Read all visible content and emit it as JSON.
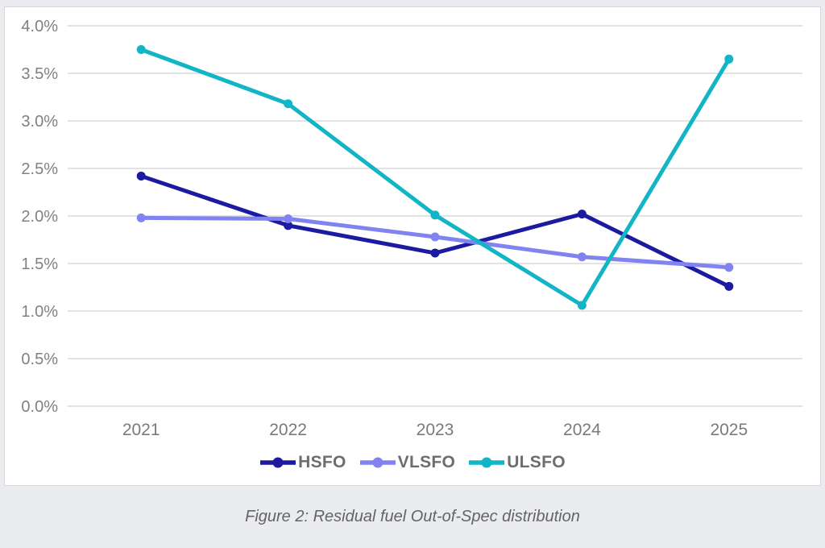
{
  "caption": {
    "text": "Figure 2: Residual fuel Out-of-Spec distribution"
  },
  "chart_data": {
    "type": "line",
    "categories": [
      "2021",
      "2022",
      "2023",
      "2024",
      "2025"
    ],
    "series": [
      {
        "name": "HSFO",
        "color": "#1B1AA0",
        "values": [
          2.42,
          1.9,
          1.61,
          2.02,
          1.26
        ]
      },
      {
        "name": "VLSFO",
        "color": "#8183F0",
        "values": [
          1.98,
          1.97,
          1.78,
          1.57,
          1.46
        ]
      },
      {
        "name": "ULSFO",
        "color": "#12B5C5",
        "values": [
          3.75,
          3.18,
          2.01,
          1.06,
          3.65
        ]
      }
    ],
    "title": "",
    "xlabel": "",
    "ylabel": "",
    "ylim": [
      0,
      4
    ],
    "ytick_step": 0.5,
    "ytick_labels": [
      "0.0%",
      "0.5%",
      "1.0%",
      "1.5%",
      "2.0%",
      "2.5%",
      "3.0%",
      "3.5%",
      "4.0%"
    ],
    "grid": "horizontal",
    "legend_position": "bottom",
    "marker": "circle"
  }
}
